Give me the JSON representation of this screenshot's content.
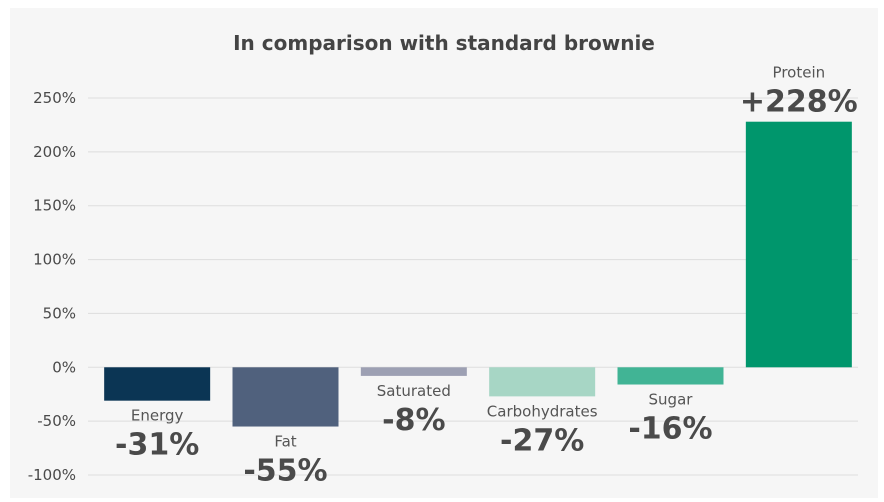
{
  "chart_data": {
    "type": "bar",
    "title": "In comparison with standard brownie",
    "categories": [
      "Energy",
      "Fat",
      "Saturated",
      "Carbohydrates",
      "Sugar",
      "Protein"
    ],
    "values": [
      -31,
      -55,
      -8,
      -27,
      -16,
      228
    ],
    "value_labels": [
      "-31%",
      "-55%",
      "-8%",
      "-27%",
      "-16%",
      "+228%"
    ],
    "colors": [
      "#0b3554",
      "#50617d",
      "#9da0b3",
      "#a7d6c5",
      "#41b495",
      "#00966c"
    ],
    "yticks": [
      -100,
      -50,
      0,
      50,
      100,
      150,
      200,
      250
    ],
    "ytick_labels": [
      "-100%",
      "-50%",
      "0%",
      "50%",
      "100%",
      "150%",
      "200%",
      "250%"
    ],
    "ylim": [
      -100,
      250
    ],
    "grid": true,
    "xlabel": "",
    "ylabel": ""
  }
}
